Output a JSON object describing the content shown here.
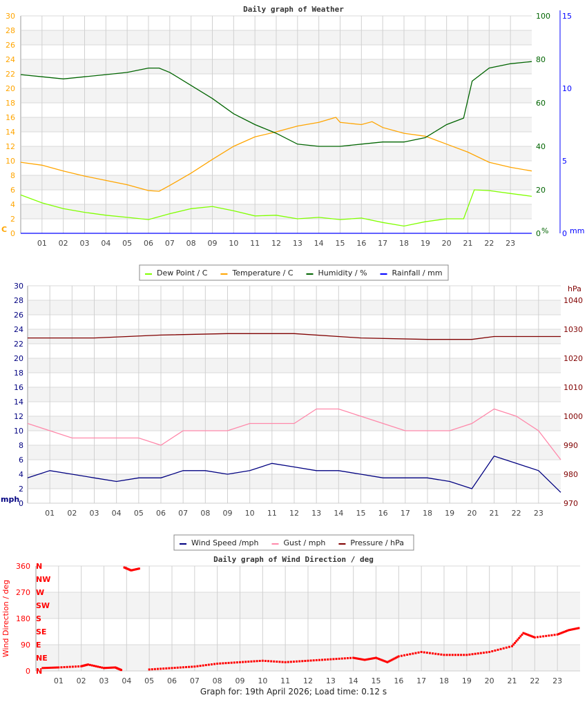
{
  "footer": "Graph for: 19th April 2026; Load time: 0.12 s",
  "chart_data": [
    {
      "type": "line",
      "title": "Daily graph of Weather",
      "x_label_ticks": [
        "01",
        "02",
        "03",
        "04",
        "05",
        "06",
        "07",
        "08",
        "09",
        "10",
        "11",
        "12",
        "13",
        "14",
        "15",
        "16",
        "17",
        "18",
        "19",
        "20",
        "21",
        "22",
        "23"
      ],
      "xlim_hours": [
        0,
        24
      ],
      "grid": true,
      "axes": {
        "left": {
          "unit": "C",
          "range": [
            0,
            30
          ],
          "step": 2,
          "color": "#ffa500"
        },
        "right": {
          "unit": "%",
          "range": [
            0,
            100
          ],
          "step": 20,
          "color": "#006400"
        },
        "far_right": {
          "unit": "mm",
          "range": [
            0,
            15
          ],
          "step": 5,
          "color": "#0000ff"
        }
      },
      "legend_placement": "bottom",
      "series": [
        {
          "name": "Dew Point / C",
          "color": "#80ff00",
          "axis": "left",
          "x": [
            0,
            1,
            2,
            3,
            4,
            5,
            6,
            7,
            8,
            9,
            10,
            11,
            12,
            13,
            14,
            15,
            16,
            17,
            18,
            19,
            20,
            20.8,
            21.3,
            22,
            23,
            24
          ],
          "y": [
            5.3,
            4.2,
            3.4,
            2.9,
            2.5,
            2.2,
            1.9,
            2.7,
            3.4,
            3.7,
            3.1,
            2.4,
            2.5,
            2.0,
            2.2,
            1.9,
            2.1,
            1.5,
            1.0,
            1.6,
            2.0,
            2.0,
            6.0,
            5.9,
            5.5,
            5.1
          ]
        },
        {
          "name": "Temperature / C",
          "color": "#ffa500",
          "axis": "left",
          "x": [
            0,
            1,
            2,
            3,
            4,
            5,
            6,
            6.5,
            7,
            8,
            9,
            10,
            11,
            12,
            13,
            14,
            14.8,
            15,
            16,
            16.5,
            17,
            18,
            19,
            20,
            21,
            22,
            23,
            24
          ],
          "y": [
            9.8,
            9.4,
            8.6,
            7.9,
            7.3,
            6.7,
            5.9,
            5.8,
            6.6,
            8.3,
            10.2,
            12.0,
            13.3,
            14.0,
            14.8,
            15.3,
            16.0,
            15.3,
            15.0,
            15.4,
            14.6,
            13.8,
            13.4,
            12.3,
            11.2,
            9.8,
            9.1,
            8.6
          ]
        },
        {
          "name": "Humidity / %",
          "color": "#006400",
          "axis": "right",
          "x": [
            0,
            1,
            2,
            3,
            4,
            5,
            6,
            6.5,
            7,
            8,
            9,
            10,
            11,
            12,
            13,
            14,
            15,
            16,
            17,
            18,
            19,
            20,
            20.8,
            21.2,
            22,
            23,
            24
          ],
          "y": [
            73,
            72,
            71,
            72,
            73,
            74,
            76,
            76,
            74,
            68,
            62,
            55,
            50,
            46,
            41,
            40,
            40,
            41,
            42,
            42,
            44,
            50,
            53,
            70,
            76,
            78,
            79
          ]
        },
        {
          "name": "Rainfall / mm",
          "color": "#0000ff",
          "axis": "far_right",
          "x": [
            0,
            24
          ],
          "y": [
            0,
            0
          ]
        }
      ]
    },
    {
      "type": "line",
      "x_label_ticks": [
        "01",
        "02",
        "03",
        "04",
        "05",
        "06",
        "07",
        "08",
        "09",
        "10",
        "11",
        "12",
        "13",
        "14",
        "15",
        "16",
        "17",
        "18",
        "19",
        "20",
        "21",
        "22",
        "23"
      ],
      "xlim_hours": [
        0,
        24
      ],
      "grid": true,
      "axes": {
        "left": {
          "unit": "mph",
          "range": [
            0,
            30
          ],
          "step": 2,
          "color": "#000080"
        },
        "right": {
          "unit": "hPa",
          "range": [
            970,
            1045
          ],
          "step": 10,
          "color": "#800000"
        }
      },
      "legend_placement": "bottom",
      "series": [
        {
          "name": "Wind Speed /mph",
          "color": "#000080",
          "axis": "left",
          "x": [
            0,
            1,
            2,
            3,
            4,
            5,
            6,
            7,
            8,
            9,
            10,
            11,
            12,
            13,
            14,
            15,
            16,
            17,
            18,
            19,
            20,
            21,
            22,
            23,
            24
          ],
          "y": [
            3.5,
            4.5,
            4,
            3.5,
            3,
            3.5,
            3.5,
            4.5,
            4.5,
            4,
            4.5,
            5.5,
            5,
            4.5,
            4.5,
            4,
            3.5,
            3.5,
            3.5,
            3,
            2,
            6.5,
            5.5,
            4.5,
            1.5
          ]
        },
        {
          "name": "Gust / mph",
          "color": "#ff88aa",
          "axis": "left",
          "x": [
            0,
            1,
            2,
            3,
            4,
            5,
            6,
            7,
            8,
            9,
            10,
            11,
            12,
            13,
            14,
            15,
            16,
            17,
            18,
            19,
            20,
            21,
            22,
            23,
            24
          ],
          "y": [
            11,
            10,
            9,
            9,
            9,
            9,
            8,
            10,
            10,
            10,
            11,
            11,
            11,
            13,
            13,
            12,
            11,
            10,
            10,
            10,
            11,
            13,
            12,
            10,
            6
          ]
        },
        {
          "name": "Pressure / hPa",
          "color": "#800000",
          "axis": "right",
          "x": [
            0,
            3,
            6,
            9,
            12,
            15,
            18,
            20,
            21,
            24
          ],
          "y": [
            1027,
            1027,
            1028,
            1028.5,
            1028.5,
            1027,
            1026.5,
            1026.5,
            1027.5,
            1027.5
          ]
        }
      ]
    },
    {
      "type": "scatter",
      "title": "Daily graph of Wind Direction / deg",
      "ylabel": "Wind Direction / deg",
      "x_label_ticks": [
        "01",
        "02",
        "03",
        "04",
        "05",
        "06",
        "07",
        "08",
        "09",
        "10",
        "11",
        "12",
        "13",
        "14",
        "15",
        "16",
        "17",
        "18",
        "19",
        "20",
        "21",
        "22",
        "23"
      ],
      "xlim_hours": [
        0,
        24
      ],
      "ylim": [
        0,
        360
      ],
      "y_ticks": [
        0,
        90,
        180,
        270,
        360
      ],
      "compass_labels": [
        "N",
        "NE",
        "E",
        "SE",
        "S",
        "SW",
        "W",
        "NW",
        "N"
      ],
      "grid": true,
      "series": [
        {
          "name": "Wind Direction / deg",
          "color": "#ff0000",
          "x": [
            0.3,
            1,
            2,
            2.3,
            3,
            3.5,
            3.8,
            3.9,
            4.2,
            4.6,
            5,
            6,
            7,
            8,
            9,
            10,
            11,
            12,
            13,
            14,
            14.5,
            15,
            15.5,
            16,
            17,
            18,
            19,
            20,
            21,
            21.5,
            22,
            23,
            23.5,
            24
          ],
          "y": [
            10,
            12,
            16,
            22,
            10,
            12,
            2,
            355,
            345,
            352,
            5,
            10,
            15,
            25,
            30,
            35,
            30,
            35,
            40,
            45,
            38,
            45,
            30,
            50,
            65,
            55,
            55,
            65,
            85,
            130,
            115,
            125,
            140,
            148
          ]
        }
      ]
    }
  ]
}
